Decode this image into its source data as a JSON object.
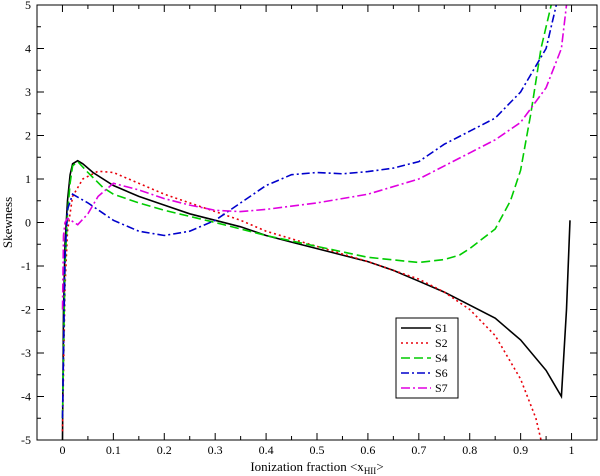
{
  "chart_data": {
    "type": "line",
    "xlabel_main": "Ionization fraction <x",
    "xlabel_sub": "HII",
    "xlabel_end": ">",
    "ylabel": "Skewness",
    "xlim": [
      -0.05,
      1.05
    ],
    "ylim": [
      -5,
      5
    ],
    "x_ticks": [
      0,
      0.1,
      0.2,
      0.3,
      0.4,
      0.5,
      0.6,
      0.7,
      0.8,
      0.9,
      1
    ],
    "x_tick_labels": [
      "0",
      "0.1",
      "0.2",
      "0.3",
      "0.4",
      "0.5",
      "0.6",
      "0.7",
      "0.8",
      "0.9",
      "1"
    ],
    "y_ticks": [
      -5,
      -4,
      -3,
      -2,
      -1,
      0,
      1,
      2,
      3,
      4,
      5
    ],
    "y_tick_labels": [
      "-5",
      "-4",
      "-3",
      "-2",
      "-1",
      "0",
      "1",
      "2",
      "3",
      "4",
      "5"
    ],
    "grid": false,
    "legend_position": "lower-right",
    "series": [
      {
        "name": "S1",
        "color": "#000000",
        "dash": "",
        "points": [
          [
            0,
            -5
          ],
          [
            0.002,
            -2
          ],
          [
            0.005,
            -0.5
          ],
          [
            0.01,
            0.5
          ],
          [
            0.015,
            1.1
          ],
          [
            0.02,
            1.35
          ],
          [
            0.03,
            1.42
          ],
          [
            0.04,
            1.35
          ],
          [
            0.06,
            1.15
          ],
          [
            0.1,
            0.85
          ],
          [
            0.15,
            0.6
          ],
          [
            0.2,
            0.4
          ],
          [
            0.25,
            0.2
          ],
          [
            0.3,
            0.05
          ],
          [
            0.35,
            -0.1
          ],
          [
            0.4,
            -0.3
          ],
          [
            0.45,
            -0.45
          ],
          [
            0.5,
            -0.6
          ],
          [
            0.55,
            -0.75
          ],
          [
            0.6,
            -0.9
          ],
          [
            0.65,
            -1.1
          ],
          [
            0.7,
            -1.35
          ],
          [
            0.75,
            -1.6
          ],
          [
            0.8,
            -1.9
          ],
          [
            0.85,
            -2.2
          ],
          [
            0.9,
            -2.7
          ],
          [
            0.95,
            -3.4
          ],
          [
            0.98,
            -4.0
          ],
          [
            0.99,
            -2.0
          ],
          [
            0.997,
            0.05
          ]
        ]
      },
      {
        "name": "S2",
        "color": "#e8000b",
        "dash": "2,3",
        "points": [
          [
            0,
            -4.8
          ],
          [
            0.005,
            -1.5
          ],
          [
            0.01,
            -0.2
          ],
          [
            0.02,
            0.6
          ],
          [
            0.04,
            1.0
          ],
          [
            0.07,
            1.18
          ],
          [
            0.1,
            1.15
          ],
          [
            0.15,
            0.9
          ],
          [
            0.2,
            0.65
          ],
          [
            0.25,
            0.45
          ],
          [
            0.3,
            0.25
          ],
          [
            0.35,
            0.05
          ],
          [
            0.4,
            -0.2
          ],
          [
            0.5,
            -0.55
          ],
          [
            0.6,
            -0.9
          ],
          [
            0.7,
            -1.3
          ],
          [
            0.75,
            -1.6
          ],
          [
            0.8,
            -2.0
          ],
          [
            0.85,
            -2.6
          ],
          [
            0.9,
            -3.6
          ],
          [
            0.93,
            -4.5
          ],
          [
            0.94,
            -5.0
          ]
        ]
      },
      {
        "name": "S4",
        "color": "#00cc00",
        "dash": "9,4",
        "points": [
          [
            0,
            -4.5
          ],
          [
            0.005,
            -1.0
          ],
          [
            0.01,
            0.2
          ],
          [
            0.015,
            0.9
          ],
          [
            0.02,
            1.3
          ],
          [
            0.03,
            1.4
          ],
          [
            0.05,
            1.15
          ],
          [
            0.08,
            0.8
          ],
          [
            0.1,
            0.65
          ],
          [
            0.15,
            0.45
          ],
          [
            0.2,
            0.28
          ],
          [
            0.3,
            0.0
          ],
          [
            0.4,
            -0.3
          ],
          [
            0.5,
            -0.55
          ],
          [
            0.6,
            -0.8
          ],
          [
            0.7,
            -0.92
          ],
          [
            0.75,
            -0.85
          ],
          [
            0.78,
            -0.75
          ],
          [
            0.8,
            -0.6
          ],
          [
            0.85,
            -0.15
          ],
          [
            0.88,
            0.5
          ],
          [
            0.9,
            1.2
          ],
          [
            0.92,
            2.5
          ],
          [
            0.94,
            4.0
          ],
          [
            0.96,
            5.0
          ]
        ]
      },
      {
        "name": "S6",
        "color": "#0000cc",
        "dash": "8,3,2,3",
        "points": [
          [
            0,
            -4.5
          ],
          [
            0.005,
            -0.8
          ],
          [
            0.01,
            0.3
          ],
          [
            0.02,
            0.65
          ],
          [
            0.05,
            0.45
          ],
          [
            0.1,
            0.05
          ],
          [
            0.15,
            -0.2
          ],
          [
            0.2,
            -0.3
          ],
          [
            0.25,
            -0.2
          ],
          [
            0.3,
            0.05
          ],
          [
            0.35,
            0.45
          ],
          [
            0.4,
            0.85
          ],
          [
            0.45,
            1.1
          ],
          [
            0.5,
            1.15
          ],
          [
            0.55,
            1.12
          ],
          [
            0.6,
            1.17
          ],
          [
            0.65,
            1.25
          ],
          [
            0.7,
            1.4
          ],
          [
            0.75,
            1.8
          ],
          [
            0.8,
            2.1
          ],
          [
            0.85,
            2.4
          ],
          [
            0.9,
            3.0
          ],
          [
            0.95,
            4.0
          ],
          [
            0.97,
            5.0
          ]
        ]
      },
      {
        "name": "S7",
        "color": "#e000e0",
        "dash": "9,3,2,3",
        "points": [
          [
            0,
            -2.0
          ],
          [
            0.002,
            -0.3
          ],
          [
            0.005,
            0.0
          ],
          [
            0.01,
            0.1
          ],
          [
            0.03,
            -0.05
          ],
          [
            0.05,
            0.2
          ],
          [
            0.07,
            0.6
          ],
          [
            0.1,
            0.9
          ],
          [
            0.15,
            0.75
          ],
          [
            0.2,
            0.55
          ],
          [
            0.25,
            0.4
          ],
          [
            0.3,
            0.28
          ],
          [
            0.35,
            0.25
          ],
          [
            0.4,
            0.3
          ],
          [
            0.5,
            0.45
          ],
          [
            0.6,
            0.65
          ],
          [
            0.7,
            1.0
          ],
          [
            0.75,
            1.3
          ],
          [
            0.8,
            1.6
          ],
          [
            0.85,
            1.9
          ],
          [
            0.9,
            2.3
          ],
          [
            0.95,
            3.1
          ],
          [
            0.98,
            4.0
          ],
          [
            0.99,
            5.0
          ]
        ]
      }
    ]
  }
}
